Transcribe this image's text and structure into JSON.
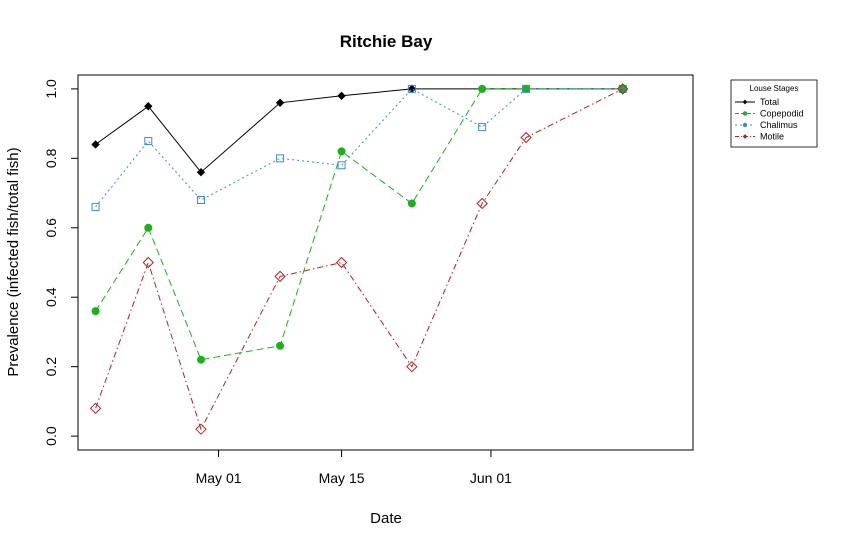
{
  "chart_data": {
    "type": "line",
    "title": "Ritchie Bay",
    "xlabel": "Date",
    "ylabel": "Prevalence (infected fish/total fish)",
    "xlim": [
      "2016-04-15",
      "2016-06-24"
    ],
    "ylim": [
      -0.04,
      1.04
    ],
    "x_ticks": [
      {
        "label": "May 01",
        "date": "2016-05-01"
      },
      {
        "label": "May 15",
        "date": "2016-05-15"
      },
      {
        "label": "Jun 01",
        "date": "2016-06-01"
      }
    ],
    "y_ticks": [
      0.0,
      0.2,
      0.4,
      0.6,
      0.8,
      1.0
    ],
    "y_tick_labels": [
      "0.0",
      "0.2",
      "0.4",
      "0.6",
      "0.8",
      "1.0"
    ],
    "legend": {
      "title": "Louse Stages",
      "position": "top-right, outside plot"
    },
    "grid": false,
    "series": [
      {
        "name": "Total",
        "color": "#000000",
        "line": "solid",
        "marker": "filled-diamond",
        "points": [
          {
            "x": "2016-04-17",
            "y": 0.84
          },
          {
            "x": "2016-04-23",
            "y": 0.95
          },
          {
            "x": "2016-04-29",
            "y": 0.76
          },
          {
            "x": "2016-05-08",
            "y": 0.96
          },
          {
            "x": "2016-05-15",
            "y": 0.98
          },
          {
            "x": "2016-05-23",
            "y": 1.0
          },
          {
            "x": "2016-05-31",
            "y": 1.0
          },
          {
            "x": "2016-06-05",
            "y": 1.0
          },
          {
            "x": "2016-06-16",
            "y": 1.0
          }
        ]
      },
      {
        "name": "Copepodid",
        "color": "#1ab21a",
        "line": "dashed",
        "marker": "filled-circle",
        "points": [
          {
            "x": "2016-04-17",
            "y": 0.36
          },
          {
            "x": "2016-04-23",
            "y": 0.6
          },
          {
            "x": "2016-04-29",
            "y": 0.22
          },
          {
            "x": "2016-05-08",
            "y": 0.26
          },
          {
            "x": "2016-05-15",
            "y": 0.82
          },
          {
            "x": "2016-05-23",
            "y": 0.67
          },
          {
            "x": "2016-05-31",
            "y": 1.0
          },
          {
            "x": "2016-06-05",
            "y": 1.0
          },
          {
            "x": "2016-06-16",
            "y": 1.0
          }
        ]
      },
      {
        "name": "Chalimus",
        "color": "#3a8fc7",
        "line": "dotted",
        "marker": "open-square",
        "points": [
          {
            "x": "2016-04-17",
            "y": 0.66
          },
          {
            "x": "2016-04-23",
            "y": 0.85
          },
          {
            "x": "2016-04-29",
            "y": 0.68
          },
          {
            "x": "2016-05-08",
            "y": 0.8
          },
          {
            "x": "2016-05-15",
            "y": 0.78
          },
          {
            "x": "2016-05-23",
            "y": 1.0
          },
          {
            "x": "2016-05-31",
            "y": 0.89
          },
          {
            "x": "2016-06-05",
            "y": 1.0
          },
          {
            "x": "2016-06-16",
            "y": 1.0
          }
        ]
      },
      {
        "name": "Motile",
        "color": "#b22222",
        "line": "dashdot",
        "marker": "open-diamond",
        "points": [
          {
            "x": "2016-04-17",
            "y": 0.08
          },
          {
            "x": "2016-04-23",
            "y": 0.5
          },
          {
            "x": "2016-04-29",
            "y": 0.02
          },
          {
            "x": "2016-05-08",
            "y": 0.46
          },
          {
            "x": "2016-05-15",
            "y": 0.5
          },
          {
            "x": "2016-05-23",
            "y": 0.2
          },
          {
            "x": "2016-05-31",
            "y": 0.67
          },
          {
            "x": "2016-06-05",
            "y": 0.86
          },
          {
            "x": "2016-06-16",
            "y": 1.0
          }
        ]
      }
    ]
  }
}
